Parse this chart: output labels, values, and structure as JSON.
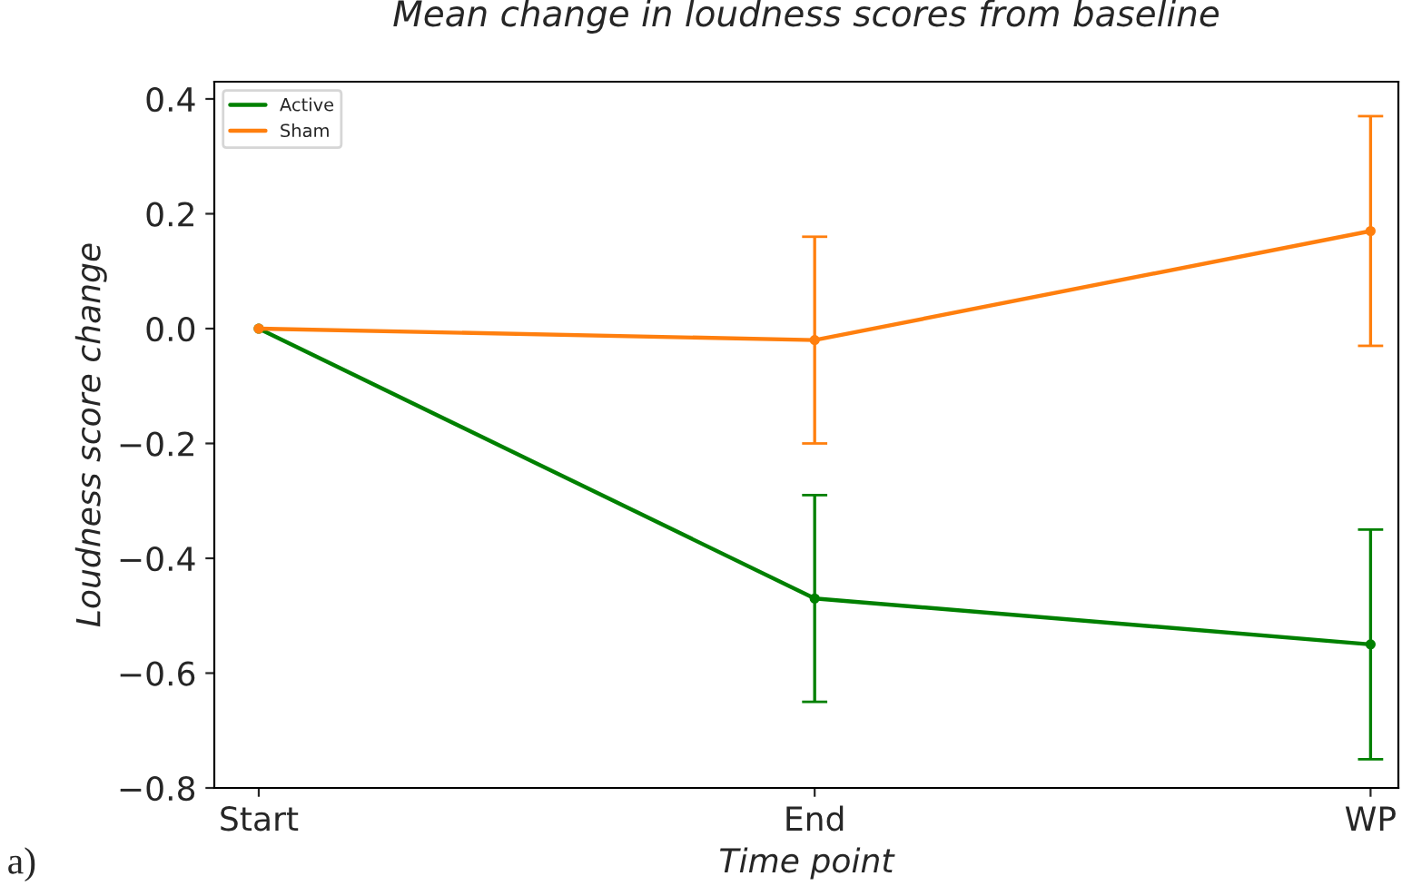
{
  "chart_data": {
    "type": "line",
    "title": "Mean change in loudness scores from baseline",
    "xlabel": "Time point",
    "ylabel": "Loudness score change",
    "categories": [
      "Start",
      "End",
      "WP"
    ],
    "series": [
      {
        "name": "Active",
        "color": "#008000",
        "values": [
          0,
          -0.47,
          -0.55
        ],
        "errors": [
          null,
          0.18,
          0.2
        ]
      },
      {
        "name": "Sham",
        "color": "#ff7f0e",
        "values": [
          0,
          -0.02,
          0.17
        ],
        "errors": [
          null,
          0.18,
          0.2
        ]
      }
    ],
    "ylim": [
      -0.8,
      0.43
    ],
    "yticks": [
      {
        "value": -0.8,
        "label": "−0.8"
      },
      {
        "value": -0.6,
        "label": "−0.6"
      },
      {
        "value": -0.4,
        "label": "−0.4"
      },
      {
        "value": -0.2,
        "label": "−0.2"
      },
      {
        "value": 0,
        "label": "0.0"
      },
      {
        "value": 0.2,
        "label": "0.2"
      },
      {
        "value": 0.4,
        "label": "0.4"
      }
    ],
    "marker": "circle",
    "line_style": "solid",
    "grid": false,
    "legend": "top left",
    "annotations": [
      "a)"
    ]
  }
}
